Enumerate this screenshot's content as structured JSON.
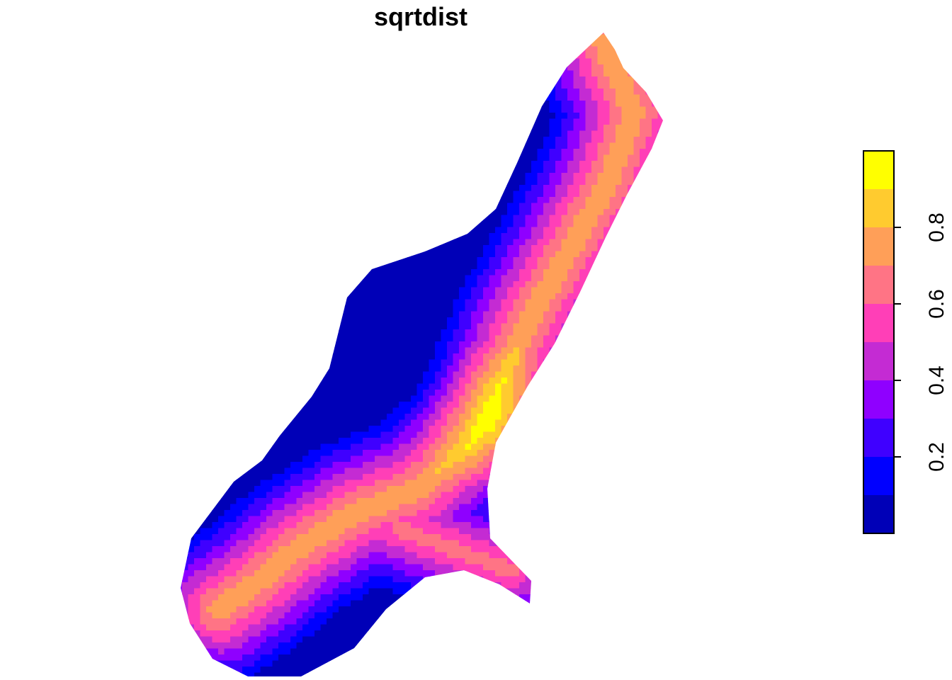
{
  "chart_data": {
    "type": "heatmap",
    "title": "sqrtdist",
    "xlabel": "",
    "ylabel": "",
    "legend": {
      "position": "right",
      "range": [
        0.0,
        1.0
      ],
      "breaks": [
        0.0,
        0.1,
        0.2,
        0.3,
        0.4,
        0.5,
        0.6,
        0.7,
        0.8,
        0.9,
        1.0
      ],
      "colors": [
        "#0000B7",
        "#0000FF",
        "#3F00FF",
        "#8F00FF",
        "#C42BD3",
        "#FF3FB7",
        "#FF7485",
        "#FF9F58",
        "#FFCB2F",
        "#FFFF00"
      ],
      "ticks": [
        0.2,
        0.4,
        0.6,
        0.8
      ],
      "tick_labels": [
        "0.2",
        "0.4",
        "0.6",
        "0.8"
      ]
    }
  }
}
